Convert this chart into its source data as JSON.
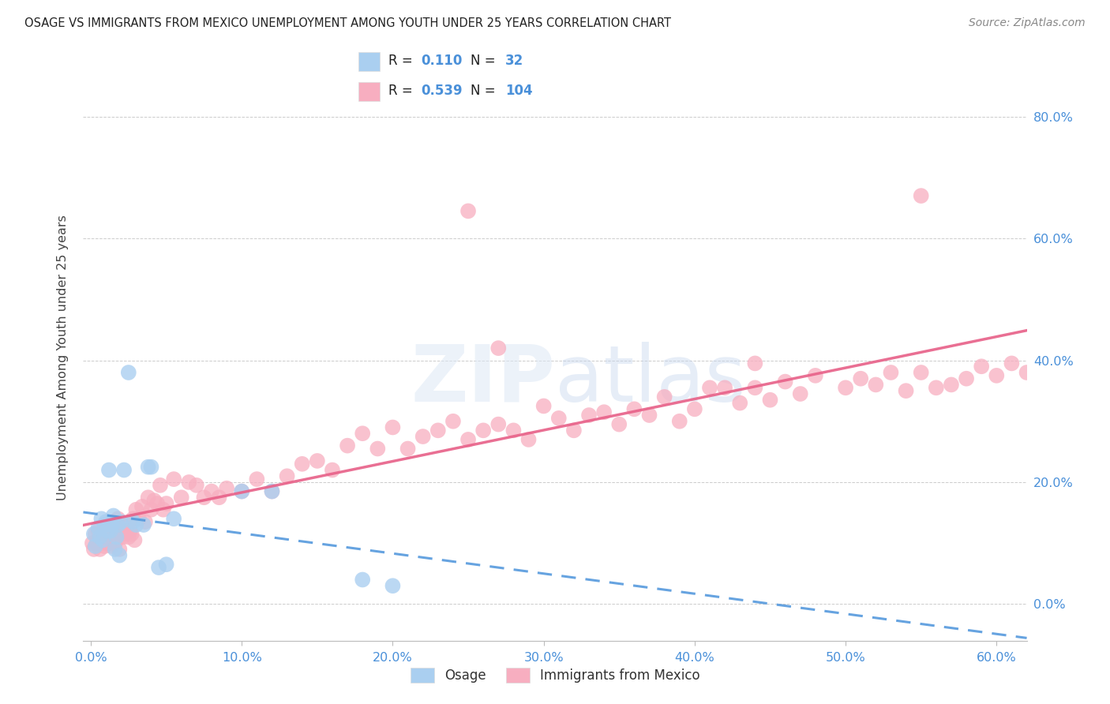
{
  "title": "OSAGE VS IMMIGRANTS FROM MEXICO UNEMPLOYMENT AMONG YOUTH UNDER 25 YEARS CORRELATION CHART",
  "source": "Source: ZipAtlas.com",
  "ylabel": "Unemployment Among Youth under 25 years",
  "osage_R": 0.11,
  "osage_N": 32,
  "mexico_R": 0.539,
  "mexico_N": 104,
  "osage_color": "#aacff0",
  "mexico_color": "#f7aec0",
  "osage_line_color": "#5599dd",
  "mexico_line_color": "#e8638a",
  "watermark_color": "#dce8f5",
  "xlim": [
    -0.005,
    0.62
  ],
  "ylim": [
    -0.06,
    0.87
  ],
  "xticks": [
    0.0,
    0.1,
    0.2,
    0.3,
    0.4,
    0.5,
    0.6
  ],
  "yticks": [
    0.0,
    0.2,
    0.4,
    0.6,
    0.8
  ],
  "osage_x": [
    0.002,
    0.003,
    0.005,
    0.006,
    0.007,
    0.008,
    0.009,
    0.01,
    0.011,
    0.012,
    0.013,
    0.014,
    0.015,
    0.016,
    0.017,
    0.018,
    0.019,
    0.02,
    0.022,
    0.025,
    0.028,
    0.03,
    0.035,
    0.038,
    0.04,
    0.045,
    0.05,
    0.055,
    0.1,
    0.12,
    0.18,
    0.2
  ],
  "osage_y": [
    0.115,
    0.095,
    0.125,
    0.11,
    0.14,
    0.105,
    0.13,
    0.135,
    0.12,
    0.22,
    0.12,
    0.13,
    0.145,
    0.09,
    0.11,
    0.13,
    0.08,
    0.135,
    0.22,
    0.38,
    0.135,
    0.13,
    0.13,
    0.225,
    0.225,
    0.06,
    0.065,
    0.14,
    0.185,
    0.185,
    0.04,
    0.03
  ],
  "mexico_x": [
    0.001,
    0.002,
    0.003,
    0.004,
    0.005,
    0.006,
    0.007,
    0.008,
    0.009,
    0.01,
    0.011,
    0.012,
    0.013,
    0.014,
    0.015,
    0.016,
    0.017,
    0.018,
    0.019,
    0.02,
    0.021,
    0.022,
    0.023,
    0.024,
    0.025,
    0.026,
    0.027,
    0.028,
    0.029,
    0.03,
    0.032,
    0.034,
    0.036,
    0.038,
    0.04,
    0.042,
    0.044,
    0.046,
    0.048,
    0.05,
    0.055,
    0.06,
    0.065,
    0.07,
    0.075,
    0.08,
    0.085,
    0.09,
    0.1,
    0.11,
    0.12,
    0.13,
    0.14,
    0.15,
    0.16,
    0.17,
    0.18,
    0.19,
    0.2,
    0.21,
    0.22,
    0.23,
    0.24,
    0.25,
    0.26,
    0.27,
    0.28,
    0.29,
    0.3,
    0.31,
    0.32,
    0.33,
    0.34,
    0.35,
    0.36,
    0.37,
    0.38,
    0.39,
    0.4,
    0.41,
    0.42,
    0.43,
    0.44,
    0.45,
    0.46,
    0.47,
    0.48,
    0.5,
    0.51,
    0.52,
    0.53,
    0.54,
    0.55,
    0.56,
    0.57,
    0.58,
    0.59,
    0.6,
    0.61,
    0.62,
    0.25,
    0.55,
    0.27,
    0.44
  ],
  "mexico_y": [
    0.1,
    0.09,
    0.115,
    0.1,
    0.12,
    0.09,
    0.105,
    0.1,
    0.095,
    0.12,
    0.11,
    0.1,
    0.115,
    0.095,
    0.135,
    0.1,
    0.115,
    0.14,
    0.09,
    0.12,
    0.11,
    0.115,
    0.12,
    0.13,
    0.11,
    0.12,
    0.115,
    0.14,
    0.105,
    0.155,
    0.14,
    0.16,
    0.135,
    0.175,
    0.155,
    0.17,
    0.165,
    0.195,
    0.155,
    0.165,
    0.205,
    0.175,
    0.2,
    0.195,
    0.175,
    0.185,
    0.175,
    0.19,
    0.185,
    0.205,
    0.185,
    0.21,
    0.23,
    0.235,
    0.22,
    0.26,
    0.28,
    0.255,
    0.29,
    0.255,
    0.275,
    0.285,
    0.3,
    0.27,
    0.285,
    0.295,
    0.285,
    0.27,
    0.325,
    0.305,
    0.285,
    0.31,
    0.315,
    0.295,
    0.32,
    0.31,
    0.34,
    0.3,
    0.32,
    0.355,
    0.355,
    0.33,
    0.355,
    0.335,
    0.365,
    0.345,
    0.375,
    0.355,
    0.37,
    0.36,
    0.38,
    0.35,
    0.38,
    0.355,
    0.36,
    0.37,
    0.39,
    0.375,
    0.395,
    0.38,
    0.645,
    0.67,
    0.42,
    0.395
  ]
}
